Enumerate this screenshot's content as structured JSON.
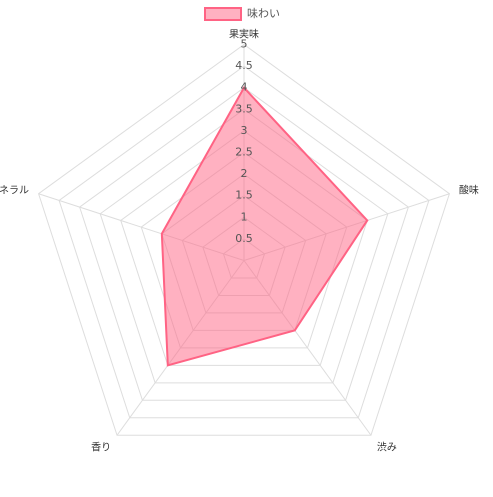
{
  "chart_data": {
    "type": "radar",
    "categories": [
      "果実味",
      "酸味",
      "渋み",
      "香り",
      "ミネラル"
    ],
    "series": [
      {
        "name": "味わい",
        "color": "#ff6384",
        "values": [
          4,
          3,
          2,
          3,
          2
        ]
      }
    ],
    "rlim": [
      0,
      5
    ],
    "rticks": [
      0.5,
      1,
      1.5,
      2,
      2.5,
      3,
      3.5,
      4,
      4.5,
      5
    ],
    "grid": true,
    "legend": "top"
  }
}
